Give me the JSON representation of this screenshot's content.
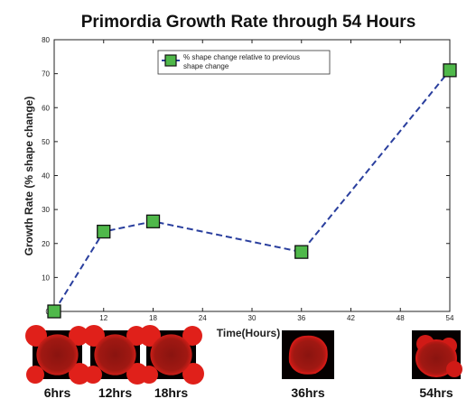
{
  "chart_data": {
    "type": "line",
    "title": "Primordia Growth Rate through 54 Hours",
    "xlabel": "Time(Hours)",
    "ylabel": "Growth Rate (% shape change)",
    "xlim": [
      6,
      54
    ],
    "ylim": [
      0,
      80
    ],
    "xticks": [
      6,
      12,
      18,
      24,
      30,
      36,
      42,
      48,
      54
    ],
    "xtick_labels": [
      "",
      "12",
      "18",
      "24",
      "30",
      "36",
      "42",
      "48",
      "54"
    ],
    "yticks": [
      0,
      10,
      20,
      30,
      40,
      50,
      60,
      70,
      80
    ],
    "grid": false,
    "legend_position": "top-center",
    "series": [
      {
        "name": "% shape change relative to previous shape change",
        "legend_lines": [
          "% shape change relative to previous",
          "shape change"
        ],
        "color": "#2a3f9e",
        "marker_color": "#4fb84a",
        "line_style": "dashed",
        "marker": "square",
        "x": [
          6,
          12,
          18,
          36,
          54
        ],
        "y": [
          0,
          23.5,
          26.5,
          17.5,
          71
        ]
      }
    ]
  },
  "thumbnails": [
    {
      "label": "6hrs",
      "name": "thumbnail-6hrs",
      "color": "#e0201a"
    },
    {
      "label": "12hrs",
      "name": "thumbnail-12hrs",
      "color": "#e0201a"
    },
    {
      "label": "18hrs",
      "name": "thumbnail-18hrs",
      "color": "#e0201a"
    },
    {
      "label": "36hrs",
      "name": "thumbnail-36hrs",
      "color": "#d01a16"
    },
    {
      "label": "54hrs",
      "name": "thumbnail-54hrs",
      "color": "#d01a16"
    }
  ]
}
